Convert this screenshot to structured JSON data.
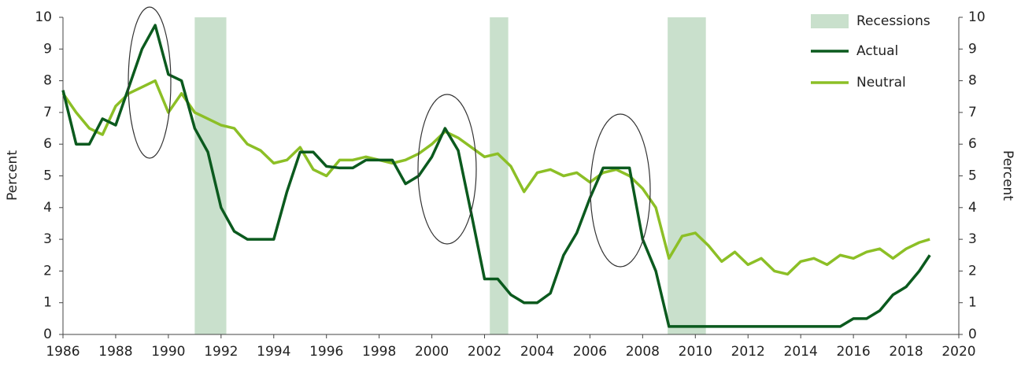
{
  "chart_data": {
    "type": "line",
    "ylabel": "Percent",
    "y2label": "Percent",
    "x": [
      1986,
      1986.5,
      1987,
      1987.5,
      1988,
      1988.5,
      1989,
      1989.5,
      1990,
      1990.5,
      1991,
      1991.5,
      1992,
      1992.5,
      1993,
      1993.5,
      1994,
      1994.5,
      1995,
      1995.5,
      1996,
      1996.5,
      1997,
      1997.5,
      1998,
      1998.5,
      1999,
      1999.5,
      2000,
      2000.5,
      2001,
      2001.5,
      2002,
      2002.5,
      2003,
      2003.5,
      2004,
      2004.5,
      2005,
      2005.5,
      2006,
      2006.5,
      2007,
      2007.5,
      2008,
      2008.5,
      2009,
      2009.5,
      2010,
      2010.5,
      2011,
      2011.5,
      2012,
      2012.5,
      2013,
      2013.5,
      2014,
      2014.5,
      2015,
      2015.5,
      2016,
      2016.5,
      2017,
      2017.5,
      2018,
      2018.5,
      2018.9
    ],
    "series": [
      {
        "name": "Actual",
        "color": "#0b5a1e",
        "values": [
          7.7,
          6.0,
          6.0,
          6.8,
          6.6,
          7.8,
          9.0,
          9.75,
          8.2,
          8.0,
          6.5,
          5.75,
          4.0,
          3.25,
          3.0,
          3.0,
          3.0,
          4.5,
          5.75,
          5.75,
          5.3,
          5.25,
          5.25,
          5.5,
          5.5,
          5.5,
          4.75,
          5.0,
          5.6,
          6.5,
          5.8,
          3.8,
          1.75,
          1.75,
          1.25,
          1.0,
          1.0,
          1.3,
          2.5,
          3.2,
          4.3,
          5.25,
          5.25,
          5.25,
          3.0,
          2.0,
          0.25,
          0.25,
          0.25,
          0.25,
          0.25,
          0.25,
          0.25,
          0.25,
          0.25,
          0.25,
          0.25,
          0.25,
          0.25,
          0.25,
          0.5,
          0.5,
          0.75,
          1.25,
          1.5,
          2.0,
          2.5
        ]
      },
      {
        "name": "Neutral",
        "color": "#8cbf26",
        "values": [
          7.6,
          7.0,
          6.5,
          6.3,
          7.2,
          7.6,
          7.8,
          8.0,
          7.0,
          7.6,
          7.0,
          6.8,
          6.6,
          6.5,
          6.0,
          5.8,
          5.4,
          5.5,
          5.9,
          5.2,
          5.0,
          5.5,
          5.5,
          5.6,
          5.5,
          5.4,
          5.5,
          5.7,
          6.0,
          6.4,
          6.2,
          5.9,
          5.6,
          5.7,
          5.3,
          4.5,
          5.1,
          5.2,
          5.0,
          5.1,
          4.8,
          5.1,
          5.2,
          5.0,
          4.6,
          4.0,
          2.4,
          3.1,
          3.2,
          2.8,
          2.3,
          2.6,
          2.2,
          2.4,
          2.0,
          1.9,
          2.3,
          2.4,
          2.2,
          2.5,
          2.4,
          2.6,
          2.7,
          2.4,
          2.7,
          2.9,
          3.0
        ]
      }
    ],
    "recessions_name": "Recessions",
    "recessions_color": "#c9e0cc",
    "recessions": [
      [
        1991.0,
        1992.2
      ],
      [
        2002.2,
        2002.9
      ],
      [
        2008.95,
        2010.4
      ]
    ],
    "xlim": [
      1986,
      2020
    ],
    "xticks": [
      1986,
      1988,
      1990,
      1992,
      1994,
      1996,
      1998,
      2000,
      2002,
      2004,
      2006,
      2008,
      2010,
      2012,
      2014,
      2016,
      2018,
      2020
    ],
    "ylim": [
      0,
      10
    ],
    "yticks": [
      0,
      1,
      2,
      3,
      4,
      5,
      6,
      7,
      8,
      9,
      10
    ],
    "y2lim": [
      0,
      10
    ],
    "y2ticks": [
      0,
      1,
      2,
      3,
      4,
      5,
      6,
      7,
      8,
      9,
      10
    ],
    "legend": "top-right"
  }
}
